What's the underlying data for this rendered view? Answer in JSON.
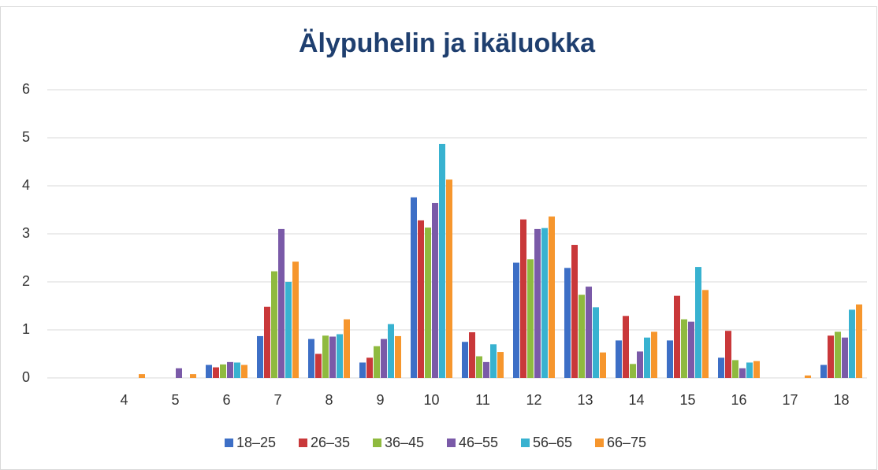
{
  "chart_data": {
    "type": "bar",
    "title": "Älypuhelin ja ikäluokka",
    "categories": [
      null,
      "4",
      "5",
      "6",
      "7",
      "8",
      "9",
      "10",
      "11",
      "12",
      "13",
      "14",
      "15",
      "16",
      "17",
      "18"
    ],
    "series": [
      {
        "name": "18–25",
        "color": "#3d6fc6",
        "values": [
          0,
          0,
          0,
          0.27,
          0.87,
          0.81,
          0.32,
          3.76,
          0.75,
          2.4,
          2.29,
          0.78,
          0.78,
          0.42,
          0,
          0.27
        ]
      },
      {
        "name": "26–35",
        "color": "#c9383a",
        "values": [
          0,
          0,
          0,
          0.22,
          1.48,
          0.5,
          0.42,
          3.28,
          0.95,
          3.3,
          2.77,
          1.29,
          1.71,
          0.98,
          0,
          0.88
        ]
      },
      {
        "name": "36–45",
        "color": "#8fba3f",
        "values": [
          0,
          0,
          0,
          0.28,
          2.22,
          0.88,
          0.66,
          3.13,
          0.45,
          2.47,
          1.73,
          0.29,
          1.22,
          0.37,
          0,
          0.96
        ]
      },
      {
        "name": "46–55",
        "color": "#7a5aa8",
        "values": [
          0,
          0,
          0.2,
          0.33,
          3.1,
          0.86,
          0.81,
          3.64,
          0.33,
          3.1,
          1.9,
          0.55,
          1.17,
          0.2,
          0,
          0.84
        ]
      },
      {
        "name": "56–65",
        "color": "#38b2d0",
        "values": [
          0,
          0,
          0,
          0.32,
          2.0,
          0.91,
          1.12,
          4.87,
          0.7,
          3.12,
          1.47,
          0.84,
          2.31,
          0.32,
          0,
          1.42
        ]
      },
      {
        "name": "66–75",
        "color": "#f6962d",
        "values": [
          0,
          0.08,
          0.08,
          0.27,
          2.42,
          1.22,
          0.87,
          4.13,
          0.54,
          3.36,
          0.53,
          0.96,
          1.83,
          0.35,
          0.05,
          1.53
        ]
      }
    ],
    "ylim": [
      0,
      6
    ],
    "yticks": [
      0,
      1,
      2,
      3,
      4,
      5,
      6
    ],
    "grid": true,
    "legend": "bottom"
  }
}
